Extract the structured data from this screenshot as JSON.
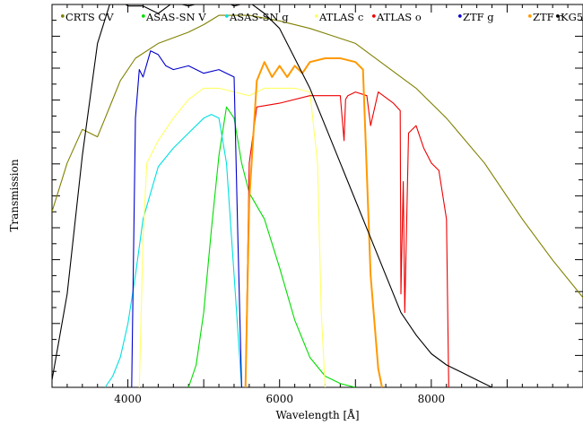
{
  "chart_data": {
    "type": "line",
    "title": "",
    "xlabel": "Wavelength [Å]",
    "ylabel": "Transmission",
    "xlim": [
      3000,
      10000
    ],
    "ylim": [
      0,
      1
    ],
    "xticks": [
      4000,
      6000,
      8000
    ],
    "grid": false,
    "legend_position": "top",
    "series": [
      {
        "name": "CRTS CV",
        "color": "#808000",
        "marker": "•",
        "x": [
          3000,
          3200,
          3400,
          3600,
          3700,
          3900,
          4100,
          4400,
          4800,
          5000,
          5200,
          5600,
          6000,
          6400,
          6700,
          7000,
          7400,
          7800,
          8200,
          8700,
          9200,
          9600,
          10000
        ],
        "y": [
          0.47,
          0.6,
          0.69,
          0.67,
          0.72,
          0.82,
          0.88,
          0.92,
          0.95,
          0.97,
          0.995,
          0.995,
          0.98,
          0.96,
          0.94,
          0.92,
          0.86,
          0.8,
          0.72,
          0.6,
          0.45,
          0.34,
          0.24
        ]
      },
      {
        "name": "ASAS-SN V",
        "color": "#00dd00",
        "marker": "•",
        "x": [
          4800,
          4900,
          5000,
          5100,
          5200,
          5300,
          5400,
          5500,
          5600,
          5800,
          6000,
          6200,
          6400,
          6600,
          6800,
          7000
        ],
        "y": [
          0.0,
          0.06,
          0.2,
          0.42,
          0.62,
          0.75,
          0.72,
          0.6,
          0.52,
          0.45,
          0.32,
          0.18,
          0.08,
          0.03,
          0.01,
          0.0
        ]
      },
      {
        "name": "ASAS-SN g",
        "color": "#00e0e0",
        "marker": "•",
        "x": [
          3700,
          3800,
          3900,
          4000,
          4100,
          4200,
          4400,
          4600,
          4800,
          5000,
          5100,
          5200,
          5300,
          5400,
          5500
        ],
        "y": [
          0.0,
          0.03,
          0.08,
          0.17,
          0.3,
          0.45,
          0.59,
          0.64,
          0.68,
          0.72,
          0.73,
          0.72,
          0.6,
          0.3,
          0.0
        ]
      },
      {
        "name": "ATLAS c",
        "color": "#ffff66",
        "marker": "•",
        "x": [
          4150,
          4200,
          4250,
          4400,
          4600,
          4800,
          5000,
          5200,
          5400,
          5600,
          5800,
          6000,
          6200,
          6400,
          6500,
          6550,
          6600
        ],
        "y": [
          0.0,
          0.4,
          0.6,
          0.66,
          0.72,
          0.77,
          0.8,
          0.8,
          0.79,
          0.78,
          0.8,
          0.8,
          0.8,
          0.79,
          0.6,
          0.2,
          0.0
        ]
      },
      {
        "name": "ATLAS o",
        "color": "#ee0000",
        "marker": "•",
        "x": [
          5550,
          5600,
          5700,
          6000,
          6400,
          6800,
          6850,
          6870,
          6900,
          7000,
          7150,
          7200,
          7300,
          7500,
          7590,
          7600,
          7630,
          7650,
          7700,
          7800,
          7900,
          8000,
          8100,
          8200,
          8230
        ],
        "y": [
          0.0,
          0.6,
          0.75,
          0.76,
          0.78,
          0.78,
          0.66,
          0.77,
          0.78,
          0.79,
          0.78,
          0.7,
          0.79,
          0.76,
          0.74,
          0.25,
          0.55,
          0.2,
          0.68,
          0.7,
          0.64,
          0.6,
          0.58,
          0.45,
          0.0
        ]
      },
      {
        "name": "ZTF g",
        "color": "#0000cc",
        "marker": "•",
        "x": [
          4050,
          4100,
          4150,
          4200,
          4300,
          4400,
          4500,
          4600,
          4800,
          5000,
          5200,
          5400,
          5450,
          5500
        ],
        "y": [
          0.0,
          0.72,
          0.85,
          0.83,
          0.9,
          0.89,
          0.86,
          0.85,
          0.86,
          0.84,
          0.85,
          0.83,
          0.4,
          0.0
        ]
      },
      {
        "name": "ZTF r",
        "color": "#ff9900",
        "marker": "•",
        "x": [
          5550,
          5600,
          5700,
          5800,
          5900,
          6000,
          6100,
          6200,
          6300,
          6400,
          6600,
          6800,
          7000,
          7100,
          7200,
          7300,
          7350
        ],
        "y": [
          0.0,
          0.5,
          0.82,
          0.87,
          0.83,
          0.86,
          0.83,
          0.86,
          0.84,
          0.87,
          0.88,
          0.88,
          0.87,
          0.85,
          0.3,
          0.05,
          0.0
        ]
      },
      {
        "name": "KG5",
        "color": "#000000",
        "marker": "•",
        "x": [
          3000,
          3200,
          3400,
          3600,
          3800,
          4000,
          4200,
          4400,
          4600,
          4800,
          5000,
          5200,
          5400,
          5600,
          5800,
          6000,
          6200,
          6400,
          6600,
          6800,
          7000,
          7200,
          7400,
          7600,
          7800,
          8000,
          8200,
          8400,
          8600,
          8800
        ],
        "y": [
          0.02,
          0.25,
          0.62,
          0.92,
          1.05,
          1.02,
          1.02,
          1.0,
          1.03,
          1.02,
          1.03,
          1.04,
          1.02,
          1.03,
          1.0,
          0.96,
          0.88,
          0.8,
          0.7,
          0.6,
          0.5,
          0.4,
          0.3,
          0.2,
          0.14,
          0.09,
          0.06,
          0.04,
          0.02,
          0.0
        ]
      }
    ]
  }
}
